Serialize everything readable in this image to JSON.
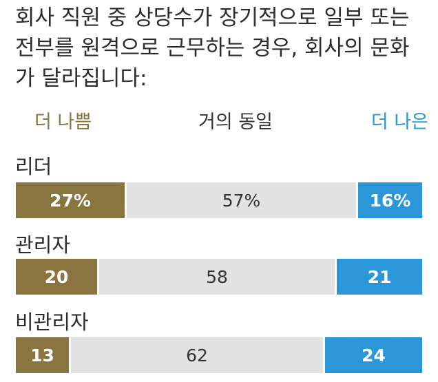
{
  "title": "회사 직원 중 상당수가 장기적으로 일부 또는 전부를 원격으로 근무하는 경우, 회사의 문화가 달라집니다:",
  "legend": {
    "worse": "더 나쁨",
    "same": "거의 동일",
    "better": "더 나은"
  },
  "colors": {
    "worse": "#8a7541",
    "same": "#e2e2e2",
    "better": "#2b97d9"
  },
  "chart_data": {
    "type": "bar",
    "orientation": "horizontal",
    "stacked": true,
    "normalized_percent": true,
    "categories": [
      "리더",
      "관리자",
      "비관리자"
    ],
    "series": [
      {
        "name": "더 나쁨",
        "values": [
          27,
          20,
          13
        ]
      },
      {
        "name": "거의 동일",
        "values": [
          57,
          58,
          62
        ]
      },
      {
        "name": "더 나은",
        "values": [
          16,
          21,
          24
        ]
      }
    ],
    "data_labels": [
      [
        "27%",
        "57%",
        "16%"
      ],
      [
        "20",
        "58",
        "21"
      ],
      [
        "13",
        "62",
        "24"
      ]
    ],
    "legend_position": "top"
  }
}
